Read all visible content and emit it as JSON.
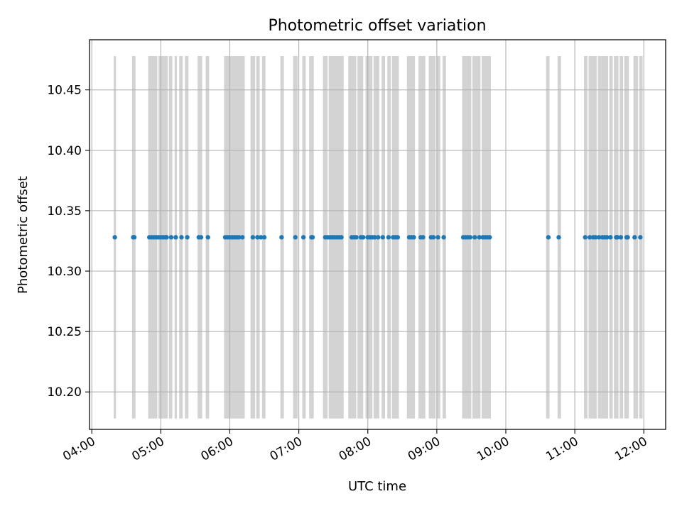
{
  "chart_data": {
    "type": "scatter",
    "title": "Photometric offset variation",
    "xlabel": "UTC time",
    "ylabel": "Photometric offset",
    "x_unit": "UTC HH:MM",
    "xlim": [
      "03:58",
      "12:19"
    ],
    "ylim": [
      10.169,
      10.4915
    ],
    "x_ticks": [
      "04:00",
      "05:00",
      "06:00",
      "07:00",
      "08:00",
      "09:00",
      "10:00",
      "11:00",
      "12:00"
    ],
    "y_ticks": [
      10.2,
      10.25,
      10.3,
      10.35,
      10.4,
      10.45
    ],
    "y_tick_labels": [
      "10.20",
      "10.25",
      "10.30",
      "10.35",
      "10.40",
      "10.45"
    ],
    "grid": true,
    "colors": {
      "points": "#1f77b4",
      "bands": "#d3d3d3",
      "grid": "#b0b0b0"
    },
    "band_ylim": [
      10.178,
      10.478
    ],
    "bands": [
      [
        "04:19",
        "04:21"
      ],
      [
        "04:35",
        "04:38"
      ],
      [
        "04:49",
        "04:57"
      ],
      [
        "04:58",
        "05:06"
      ],
      [
        "05:07",
        "05:10"
      ],
      [
        "05:12",
        "05:14"
      ],
      [
        "05:16",
        "05:19"
      ],
      [
        "05:21",
        "05:24"
      ],
      [
        "05:32",
        "05:36"
      ],
      [
        "05:39",
        "05:42"
      ],
      [
        "05:55",
        "06:13"
      ],
      [
        "06:18",
        "06:22"
      ],
      [
        "06:23",
        "06:26"
      ],
      [
        "06:28",
        "06:31"
      ],
      [
        "06:44",
        "06:47"
      ],
      [
        "06:55",
        "06:59"
      ],
      [
        "07:03",
        "07:06"
      ],
      [
        "07:09",
        "07:13"
      ],
      [
        "07:21",
        "07:25"
      ],
      [
        "07:26",
        "07:39"
      ],
      [
        "07:43",
        "07:50"
      ],
      [
        "07:51",
        "07:56"
      ],
      [
        "07:58",
        "08:04"
      ],
      [
        "08:05",
        "08:10"
      ],
      [
        "08:12",
        "08:15"
      ],
      [
        "08:17",
        "08:20"
      ],
      [
        "08:21",
        "08:27"
      ],
      [
        "08:34",
        "08:41"
      ],
      [
        "08:44",
        "08:50"
      ],
      [
        "08:53",
        "08:59"
      ],
      [
        "09:00",
        "09:03"
      ],
      [
        "09:05",
        "09:08"
      ],
      [
        "09:22",
        "09:30"
      ],
      [
        "09:31",
        "09:35"
      ],
      [
        "09:35",
        "09:38"
      ],
      [
        "09:39",
        "09:47"
      ],
      [
        "10:35",
        "10:38"
      ],
      [
        "10:45",
        "10:48"
      ],
      [
        "11:08",
        "11:11"
      ],
      [
        "11:12",
        "11:15"
      ],
      [
        "11:15",
        "11:19"
      ],
      [
        "11:20",
        "11:23"
      ],
      [
        "11:23",
        "11:29"
      ],
      [
        "11:30",
        "11:33"
      ],
      [
        "11:34",
        "11:38"
      ],
      [
        "11:39",
        "11:42"
      ],
      [
        "11:43",
        "11:47"
      ],
      [
        "11:51",
        "11:55"
      ],
      [
        "11:56",
        "11:59"
      ]
    ],
    "series": [
      {
        "value": 10.328,
        "x": [
          "04:20",
          "04:36",
          "04:37",
          "04:50",
          "04:52",
          "04:54",
          "04:56",
          "04:58",
          "05:00",
          "05:02",
          "05:04",
          "05:05",
          "05:09",
          "05:13",
          "05:18",
          "05:23",
          "05:33",
          "05:35",
          "05:41",
          "05:56",
          "05:58",
          "06:00",
          "06:02",
          "06:04",
          "06:06",
          "06:08",
          "06:11",
          "06:20",
          "06:24",
          "06:27",
          "06:30",
          "06:45",
          "06:57",
          "07:04",
          "07:11",
          "07:12",
          "07:23",
          "07:25",
          "07:27",
          "07:29",
          "07:31",
          "07:33",
          "07:35",
          "07:37",
          "07:46",
          "07:48",
          "07:50",
          "07:54",
          "07:56",
          "08:00",
          "08:02",
          "08:04",
          "08:06",
          "08:09",
          "08:13",
          "08:18",
          "08:22",
          "08:24",
          "08:26",
          "08:36",
          "08:38",
          "08:40",
          "08:46",
          "08:48",
          "08:55",
          "08:57",
          "09:01",
          "09:06",
          "09:23",
          "09:25",
          "09:27",
          "09:29",
          "09:33",
          "09:37",
          "09:40",
          "09:42",
          "09:44",
          "09:46",
          "10:37",
          "10:46",
          "11:09",
          "11:13",
          "11:16",
          "11:18",
          "11:21",
          "11:24",
          "11:26",
          "11:28",
          "11:31",
          "11:36",
          "11:37",
          "11:40",
          "11:45",
          "11:46",
          "11:52",
          "11:57"
        ]
      }
    ]
  }
}
